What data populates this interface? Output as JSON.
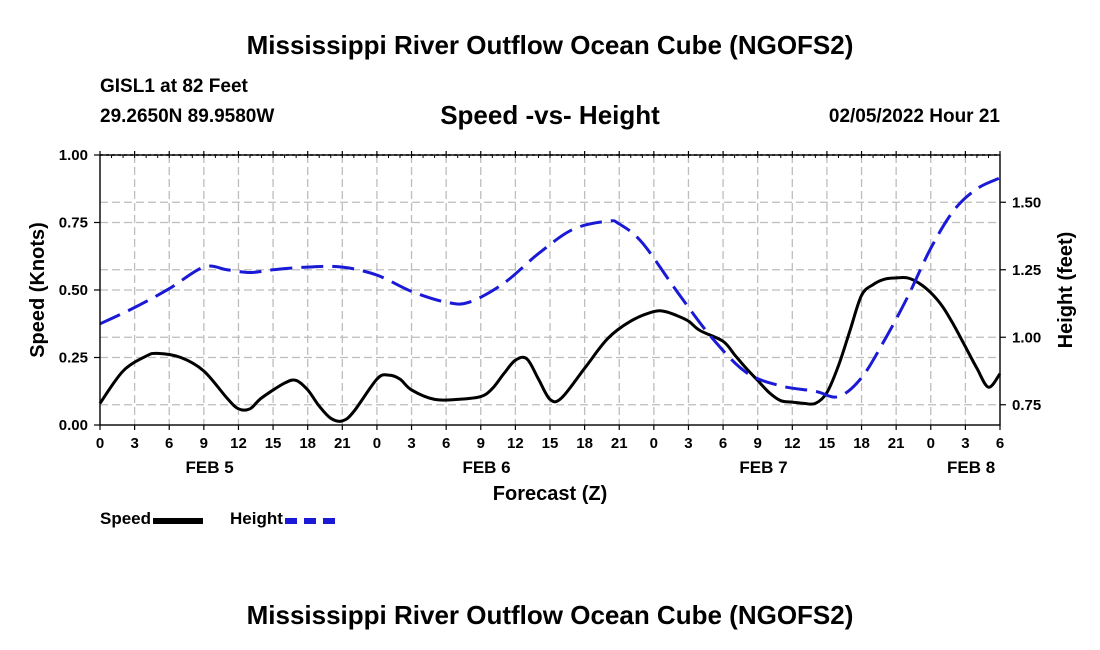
{
  "header": {
    "title": "Mississippi River Outflow Ocean Cube (NGOFS2)",
    "station": "GISL1 at 82 Feet",
    "coords": "29.2650N  89.9580W",
    "subtitle": "Speed -vs- Height",
    "datetime": "02/05/2022 Hour 21"
  },
  "footer": {
    "title": "Mississippi River Outflow Ocean Cube (NGOFS2)"
  },
  "legend": {
    "speed_label": "Speed",
    "height_label": "Height"
  },
  "colors": {
    "speed": "#000000",
    "height": "#1a1ad6",
    "grid": "#bdbdbd"
  },
  "chart_data": {
    "type": "line",
    "xlabel": "Forecast (Z)",
    "x_range_hours": [
      0,
      78
    ],
    "x_tick_step_hours": 3,
    "x_tick_labels": [
      "0",
      "3",
      "6",
      "9",
      "12",
      "15",
      "18",
      "21",
      "0",
      "3",
      "6",
      "9",
      "12",
      "15",
      "18",
      "21",
      "0",
      "3",
      "6",
      "9",
      "12",
      "15",
      "18",
      "21",
      "0",
      "3",
      "6"
    ],
    "day_labels": [
      {
        "label": "FEB 5",
        "hour": 9.5
      },
      {
        "label": "FEB 6",
        "hour": 33.5
      },
      {
        "label": "FEB 7",
        "hour": 57.5
      },
      {
        "label": "FEB 8",
        "hour": 75.5
      }
    ],
    "left_axis": {
      "label": "Speed (Knots)",
      "range": [
        0,
        1
      ],
      "ticks": [
        "0.00",
        "0.25",
        "0.50",
        "0.75",
        "1.00"
      ]
    },
    "right_axis": {
      "label": "Height (feet)",
      "range": [
        0.675,
        1.675
      ],
      "ticks": [
        "0.75",
        "1.00",
        "1.25",
        "1.50"
      ]
    },
    "grid": true,
    "series": [
      {
        "name": "Speed",
        "axis": "left",
        "style": "solid",
        "x": [
          0,
          2,
          4,
          5,
          7,
          9,
          11,
          12,
          13,
          14,
          16,
          17,
          18,
          19,
          20,
          21,
          22,
          24,
          25,
          26,
          27,
          29,
          31,
          33,
          34,
          35,
          36,
          37,
          38,
          39,
          40,
          42,
          44,
          46,
          48,
          49,
          50,
          51,
          52,
          54,
          55,
          56,
          57,
          58,
          59,
          60,
          61,
          62,
          63,
          64,
          65,
          66,
          67,
          68,
          69,
          70,
          71,
          72,
          73,
          74,
          75,
          76,
          77,
          78
        ],
        "values": [
          0.08,
          0.2,
          0.255,
          0.265,
          0.25,
          0.2,
          0.1,
          0.06,
          0.06,
          0.1,
          0.155,
          0.165,
          0.13,
          0.07,
          0.025,
          0.015,
          0.05,
          0.17,
          0.185,
          0.17,
          0.13,
          0.095,
          0.095,
          0.105,
          0.135,
          0.19,
          0.24,
          0.245,
          0.17,
          0.095,
          0.1,
          0.21,
          0.32,
          0.385,
          0.42,
          0.42,
          0.405,
          0.385,
          0.35,
          0.31,
          0.26,
          0.21,
          0.165,
          0.12,
          0.09,
          0.085,
          0.08,
          0.08,
          0.12,
          0.22,
          0.35,
          0.48,
          0.52,
          0.54,
          0.545,
          0.545,
          0.525,
          0.49,
          0.44,
          0.37,
          0.29,
          0.21,
          0.14,
          0.19
        ]
      },
      {
        "name": "Height",
        "axis": "right",
        "style": "dashed",
        "x": [
          0,
          3,
          6,
          9,
          11,
          13,
          15,
          18,
          21,
          24,
          27,
          30,
          32,
          35,
          38,
          41,
          44,
          45,
          47,
          50,
          53,
          56,
          59,
          62,
          64,
          66,
          68,
          70,
          72,
          74,
          76,
          78
        ],
        "values": [
          1.05,
          1.11,
          1.18,
          1.26,
          1.25,
          1.24,
          1.25,
          1.26,
          1.26,
          1.23,
          1.17,
          1.13,
          1.13,
          1.2,
          1.31,
          1.4,
          1.43,
          1.42,
          1.35,
          1.17,
          1.0,
          0.87,
          0.82,
          0.8,
          0.78,
          0.85,
          0.99,
          1.15,
          1.33,
          1.47,
          1.55,
          1.59
        ]
      }
    ]
  }
}
